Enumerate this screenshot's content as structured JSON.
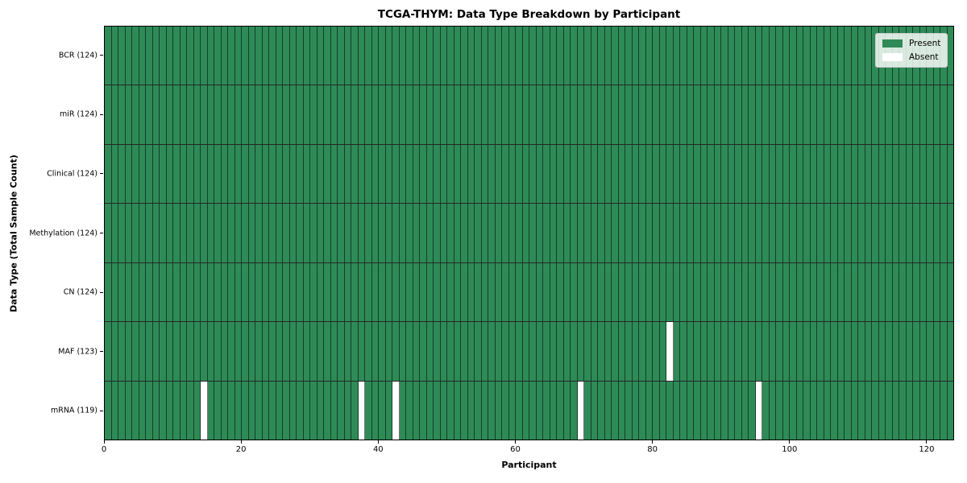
{
  "colors": {
    "present": "#2e8b57",
    "absent": "#ffffff",
    "cell_border": "rgba(0,0,0,0.55)",
    "row_separator": "rgba(0,0,0,0.85)",
    "axis_spine": "#000000",
    "legend_border": "#cccccc"
  },
  "legend": {
    "items": [
      {
        "label": "Present",
        "color": "#2e8b57"
      },
      {
        "label": "Absent",
        "color": "#ffffff"
      }
    ]
  },
  "chart_data": {
    "type": "heatmap",
    "title": "TCGA-THYM: Data Type Breakdown by Participant",
    "xlabel": "Participant",
    "ylabel": "Data Type (Total Sample Count)",
    "n_participants": 124,
    "xlim": [
      0,
      124
    ],
    "x_ticks": [
      0,
      20,
      40,
      60,
      80,
      100,
      120
    ],
    "legend_position": "upper right",
    "legend_entries": [
      "Present",
      "Absent"
    ],
    "rows": [
      {
        "label": "BCR (124)",
        "data_type": "BCR",
        "present_count": 124,
        "absent_participants": []
      },
      {
        "label": "miR (124)",
        "data_type": "miR",
        "present_count": 124,
        "absent_participants": []
      },
      {
        "label": "Clinical (124)",
        "data_type": "Clinical",
        "present_count": 124,
        "absent_participants": []
      },
      {
        "label": "Methylation (124)",
        "data_type": "Methylation",
        "present_count": 124,
        "absent_participants": []
      },
      {
        "label": "CN (124)",
        "data_type": "CN",
        "present_count": 124,
        "absent_participants": []
      },
      {
        "label": "MAF (123)",
        "data_type": "MAF",
        "present_count": 123,
        "absent_participants": [
          82
        ]
      },
      {
        "label": "mRNA (119)",
        "data_type": "mRNA",
        "present_count": 119,
        "absent_participants": [
          14,
          37,
          42,
          69,
          95
        ]
      }
    ]
  }
}
